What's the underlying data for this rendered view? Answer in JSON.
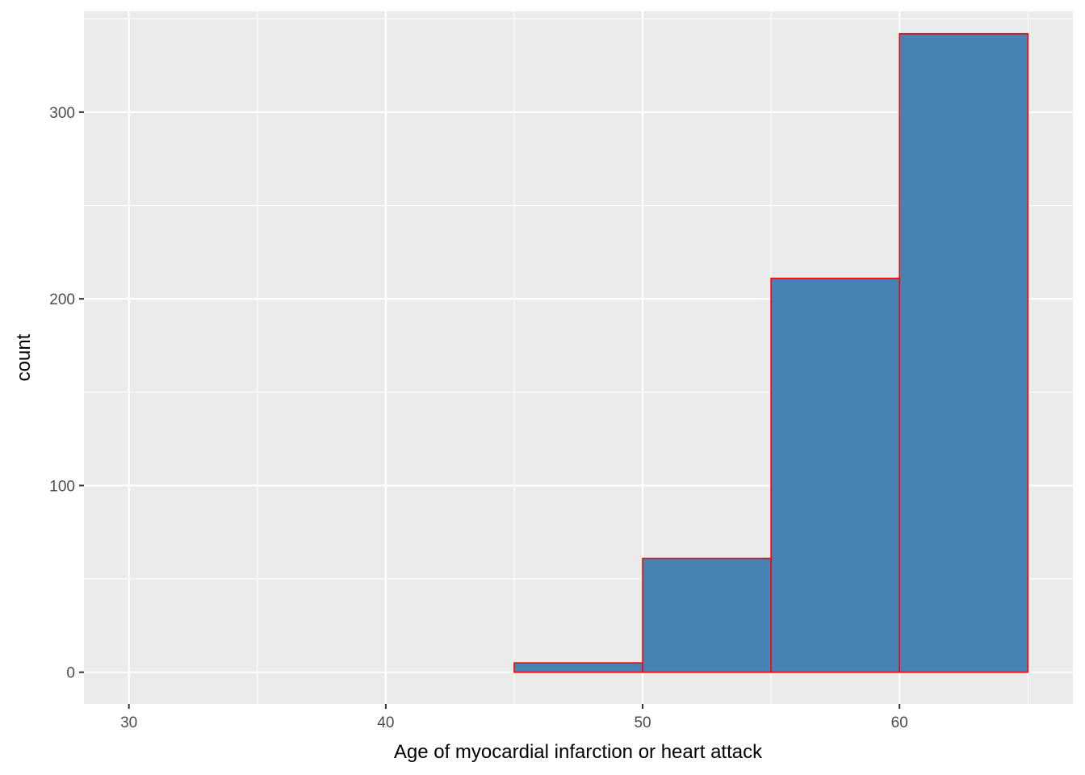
{
  "chart_data": {
    "type": "bar",
    "subtype": "histogram",
    "title": "",
    "xlabel": "Age of myocardial infarction or heart attack",
    "ylabel": "count",
    "xlim": [
      28.25,
      66.75
    ],
    "ylim": [
      -17,
      354
    ],
    "x_ticks": [
      30,
      40,
      50,
      60
    ],
    "y_ticks": [
      0,
      100,
      200,
      300
    ],
    "grid": true,
    "legend": "none",
    "bins": [
      {
        "x0": 30,
        "x1": 35,
        "count": 0
      },
      {
        "x0": 35,
        "x1": 40,
        "count": 0
      },
      {
        "x0": 40,
        "x1": 45,
        "count": 0
      },
      {
        "x0": 45,
        "x1": 50,
        "count": 5
      },
      {
        "x0": 50,
        "x1": 55,
        "count": 61
      },
      {
        "x0": 55,
        "x1": 60,
        "count": 211
      },
      {
        "x0": 60,
        "x1": 65,
        "count": 342
      }
    ],
    "colors": {
      "fill": "#4682B4",
      "outline": "#FF0000",
      "panel": "#EBEBEB",
      "grid": "#FFFFFF"
    }
  }
}
